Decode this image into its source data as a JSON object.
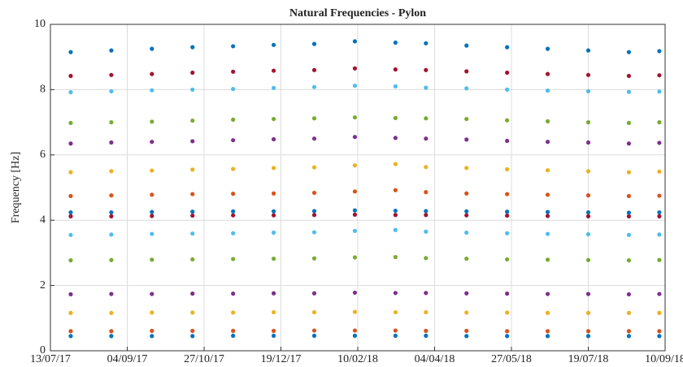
{
  "chart_data": {
    "type": "scatter",
    "title": "Natural Frequencies - Pylon",
    "ylabel": "Frequency [Hz]",
    "x": [
      "27/07/17",
      "24/08/17",
      "21/09/17",
      "19/10/17",
      "16/11/17",
      "14/12/17",
      "11/01/18",
      "08/02/18",
      "08/03/18",
      "29/03/18",
      "26/04/18",
      "24/05/18",
      "21/06/18",
      "19/07/18",
      "16/08/18",
      "06/09/18"
    ],
    "xlim": [
      "13/07/17",
      "10/09/18"
    ],
    "xticks": [
      "13/07/17",
      "04/09/17",
      "27/10/17",
      "19/12/17",
      "10/02/18",
      "04/04/18",
      "27/05/18",
      "19/07/18",
      "10/09/18"
    ],
    "ylim": [
      0,
      10
    ],
    "yticks": [
      0,
      2,
      4,
      6,
      8,
      10
    ],
    "grid": true,
    "series": [
      {
        "color": "#0072BD",
        "values": [
          0.45,
          0.45,
          0.45,
          0.45,
          0.46,
          0.46,
          0.46,
          0.46,
          0.46,
          0.46,
          0.45,
          0.45,
          0.45,
          0.45,
          0.45,
          0.45
        ]
      },
      {
        "color": "#D95319",
        "values": [
          0.6,
          0.6,
          0.61,
          0.61,
          0.61,
          0.61,
          0.62,
          0.62,
          0.62,
          0.61,
          0.61,
          0.6,
          0.6,
          0.6,
          0.6,
          0.6
        ]
      },
      {
        "color": "#EDB120",
        "values": [
          1.16,
          1.16,
          1.17,
          1.17,
          1.17,
          1.18,
          1.18,
          1.19,
          1.18,
          1.18,
          1.17,
          1.17,
          1.16,
          1.16,
          1.16,
          1.16
        ]
      },
      {
        "color": "#7E2F8E",
        "values": [
          1.73,
          1.74,
          1.74,
          1.75,
          1.75,
          1.76,
          1.76,
          1.78,
          1.77,
          1.77,
          1.76,
          1.75,
          1.74,
          1.74,
          1.73,
          1.74
        ]
      },
      {
        "color": "#77AC30",
        "values": [
          2.77,
          2.78,
          2.79,
          2.8,
          2.81,
          2.82,
          2.83,
          2.86,
          2.87,
          2.84,
          2.82,
          2.8,
          2.79,
          2.78,
          2.77,
          2.78
        ]
      },
      {
        "color": "#4DBEEE",
        "values": [
          3.55,
          3.56,
          3.58,
          3.59,
          3.6,
          3.62,
          3.63,
          3.67,
          3.7,
          3.65,
          3.62,
          3.6,
          3.58,
          3.57,
          3.55,
          3.56
        ]
      },
      {
        "color": "#A2142F",
        "values": [
          4.12,
          4.12,
          4.13,
          4.14,
          4.15,
          4.15,
          4.16,
          4.17,
          4.16,
          4.16,
          4.15,
          4.14,
          4.13,
          4.12,
          4.12,
          4.12
        ]
      },
      {
        "color": "#0072BD",
        "values": [
          4.24,
          4.24,
          4.25,
          4.26,
          4.27,
          4.27,
          4.28,
          4.3,
          4.29,
          4.28,
          4.27,
          4.26,
          4.25,
          4.24,
          4.23,
          4.24
        ]
      },
      {
        "color": "#D95319",
        "values": [
          4.74,
          4.76,
          4.78,
          4.8,
          4.81,
          4.82,
          4.84,
          4.88,
          4.92,
          4.86,
          4.82,
          4.8,
          4.78,
          4.76,
          4.74,
          4.75
        ]
      },
      {
        "color": "#EDB120",
        "values": [
          5.47,
          5.5,
          5.52,
          5.55,
          5.57,
          5.6,
          5.62,
          5.68,
          5.72,
          5.63,
          5.6,
          5.56,
          5.53,
          5.5,
          5.47,
          5.49
        ]
      },
      {
        "color": "#7E2F8E",
        "values": [
          6.35,
          6.38,
          6.4,
          6.42,
          6.45,
          6.48,
          6.5,
          6.55,
          6.52,
          6.5,
          6.47,
          6.43,
          6.4,
          6.38,
          6.35,
          6.37
        ]
      },
      {
        "color": "#77AC30",
        "values": [
          6.98,
          7.0,
          7.02,
          7.05,
          7.08,
          7.1,
          7.12,
          7.15,
          7.13,
          7.12,
          7.1,
          7.06,
          7.03,
          7.0,
          6.98,
          7.0
        ]
      },
      {
        "color": "#4DBEEE",
        "values": [
          7.92,
          7.95,
          7.98,
          8.0,
          8.02,
          8.05,
          8.08,
          8.12,
          8.1,
          8.06,
          8.04,
          8.0,
          7.97,
          7.95,
          7.93,
          7.94
        ]
      },
      {
        "color": "#A2142F",
        "values": [
          8.42,
          8.45,
          8.48,
          8.52,
          8.55,
          8.58,
          8.6,
          8.65,
          8.62,
          8.6,
          8.56,
          8.52,
          8.48,
          8.45,
          8.42,
          8.44
        ]
      },
      {
        "color": "#0072BD",
        "values": [
          9.15,
          9.2,
          9.25,
          9.3,
          9.33,
          9.37,
          9.4,
          9.48,
          9.44,
          9.42,
          9.35,
          9.3,
          9.25,
          9.2,
          9.15,
          9.18
        ]
      }
    ]
  }
}
